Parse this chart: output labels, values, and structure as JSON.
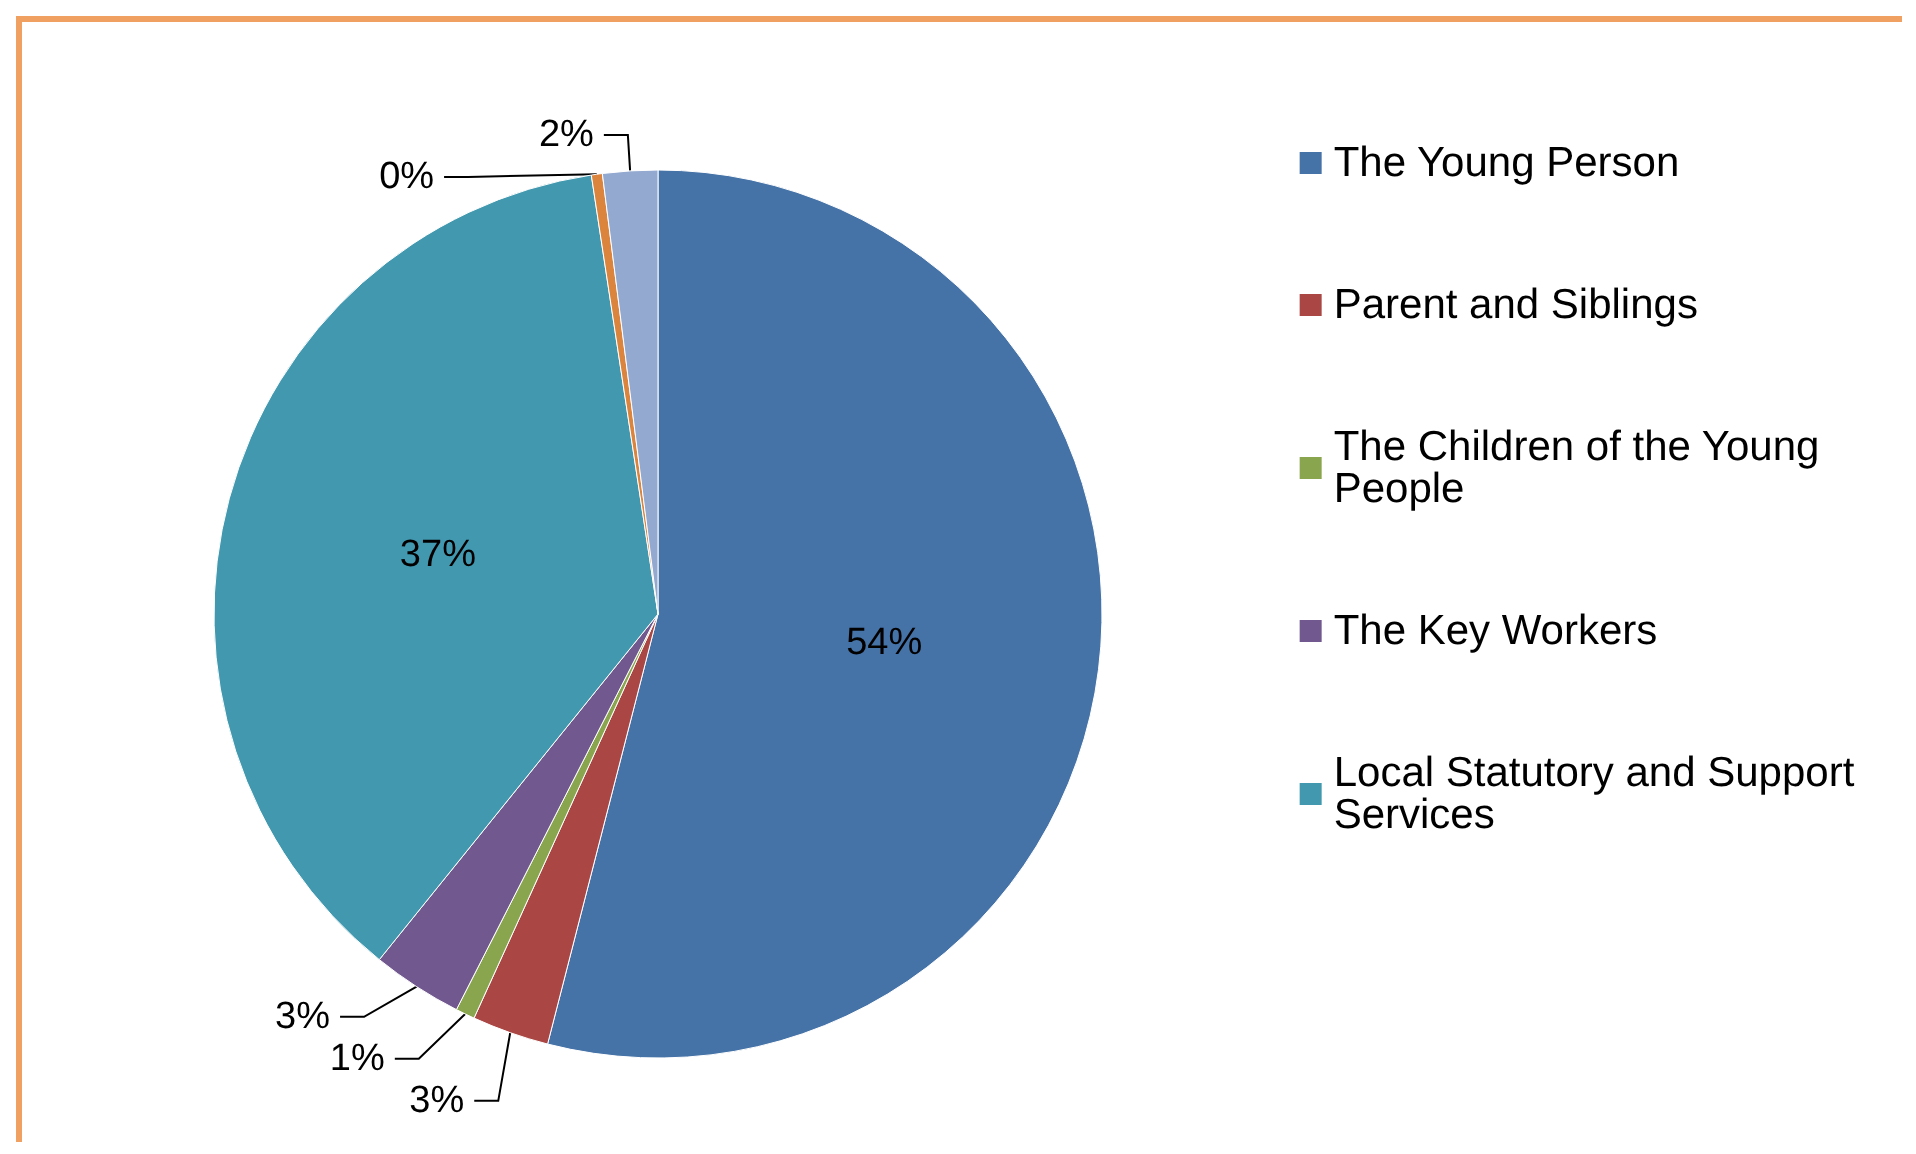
{
  "chart_data": {
    "type": "pie",
    "categories": [
      "The Young Person",
      "Parent and Siblings",
      "The Children of the Young People",
      "The Key Workers",
      "Local Statutory and Support Services",
      null,
      null
    ],
    "values": [
      54,
      2.8,
      0.7,
      3.3,
      36.8,
      0.4,
      2.0
    ],
    "value_labels": [
      "54%",
      "3%",
      "1%",
      "3%",
      "37%",
      "0%",
      "2%"
    ],
    "colors": [
      "#4572a7",
      "#aa4643",
      "#89a54e",
      "#71588f",
      "#4198af",
      "#db843d",
      "#93a9cf"
    ],
    "legend": "right"
  }
}
